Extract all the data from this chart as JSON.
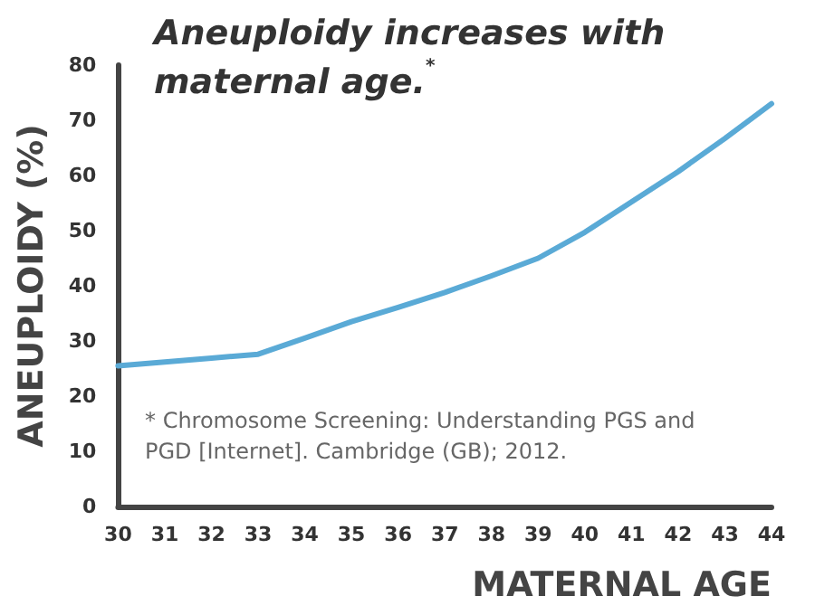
{
  "chart_data": {
    "type": "line",
    "title": "Aneuploidy increases with maternal age.$^{*}$",
    "xlabel": "MATERNAL AGE",
    "ylabel": "ANEUPLOIDY (%)",
    "categories": [
      "30",
      "31",
      "32",
      "33",
      "34",
      "35",
      "36",
      "37",
      "38",
      "39",
      "40",
      "41",
      "42",
      "43",
      "44"
    ],
    "series": [
      {
        "color": "#5aaad6",
        "values": [
          25.5,
          26.2,
          26.9,
          27.6,
          30.5,
          33.5,
          36.1,
          38.8,
          41.8,
          45,
          49.7,
          55.2,
          60.7,
          66.7,
          73
        ]
      }
    ],
    "ylim": [
      0,
      80
    ],
    "yticks": [
      0,
      10,
      20,
      30,
      40,
      50,
      60,
      70,
      80
    ],
    "grid": false,
    "marker": "none",
    "line_style": "solid",
    "annotations": [
      "* Chromosome Screening: Understanding PGS and PGD [Internet]. Cambridge (GB); 2012."
    ]
  }
}
